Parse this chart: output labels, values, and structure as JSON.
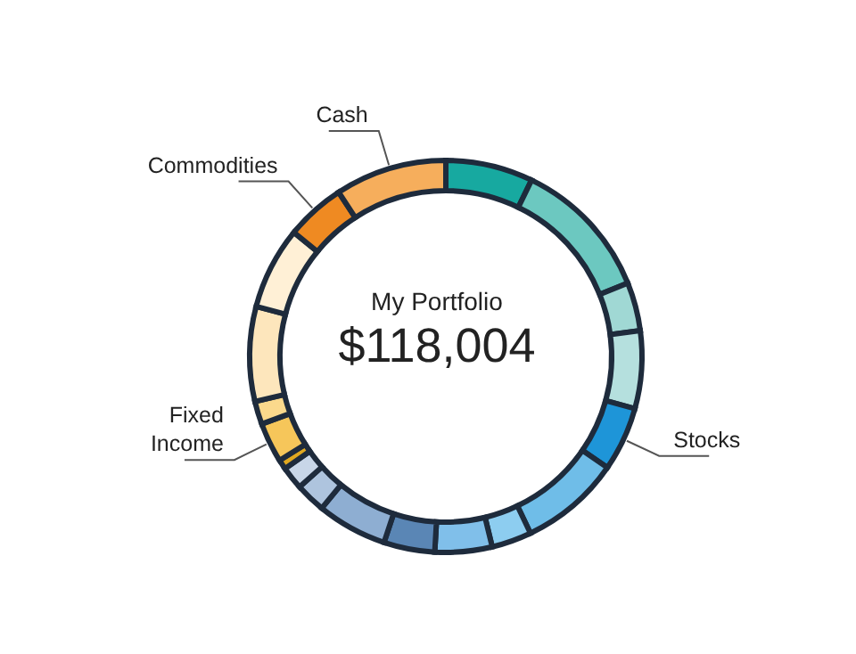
{
  "chart_data": {
    "type": "donut",
    "title": "My Portfolio",
    "subtitle": "$118,004",
    "categories": [
      null,
      null,
      null,
      null,
      "Stocks",
      null,
      null,
      null,
      null,
      null,
      null,
      null,
      null,
      "Fixed Income",
      null,
      null,
      null,
      "Commodities",
      "Cash"
    ],
    "values": [
      7.2,
      11.7,
      4.0,
      6.4,
      5.3,
      8.3,
      3.3,
      4.7,
      4.2,
      5.8,
      2.5,
      1.9,
      0.8,
      3.3,
      1.9,
      7.8,
      6.8,
      4.9,
      9.2
    ],
    "colors": [
      "#17a9a0",
      "#6cc8c0",
      "#a0d8d4",
      "#b5e0de",
      "#1e95d8",
      "#6fbde8",
      "#8dcdf0",
      "#80bfea",
      "#5a86b5",
      "#8eaed2",
      "#aec4de",
      "#c8d6e8",
      "#e0a820",
      "#f6c65a",
      "#fbd98c",
      "#fde6bc",
      "#fff0d6",
      "#ef8a22",
      "#f6ae5c"
    ]
  }
}
